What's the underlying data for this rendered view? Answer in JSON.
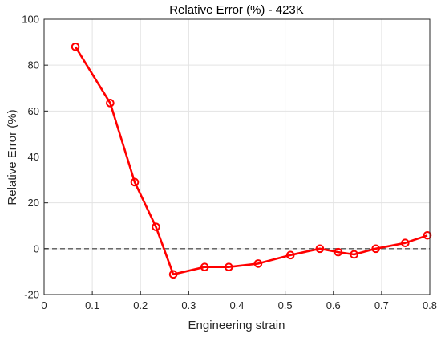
{
  "chart_data": {
    "type": "line",
    "title": "Relative Error (%) - 423K",
    "xlabel": "Engineering strain",
    "ylabel": "Relative Error (%)",
    "xlim": [
      0,
      0.8
    ],
    "ylim": [
      -20,
      100
    ],
    "xticks": [
      0,
      0.1,
      0.2,
      0.3,
      0.4,
      0.5,
      0.6,
      0.7,
      0.8
    ],
    "xtick_labels": [
      "0",
      "0.1",
      "0.2",
      "0.3",
      "0.4",
      "0.5",
      "0.6",
      "0.7",
      "0.8"
    ],
    "yticks": [
      -20,
      0,
      20,
      40,
      60,
      80,
      100
    ],
    "ytick_labels": [
      "-20",
      "0",
      "20",
      "40",
      "60",
      "80",
      "100"
    ],
    "grid": true,
    "reference_line": {
      "y": 0,
      "style": "dashed",
      "color": "#555555"
    },
    "series": [
      {
        "color": "#ff0000",
        "marker": "circle",
        "x": [
          0.065,
          0.137,
          0.188,
          0.232,
          0.268,
          0.333,
          0.383,
          0.444,
          0.511,
          0.572,
          0.61,
          0.643,
          0.688,
          0.749,
          0.795
        ],
        "y": [
          88.0,
          63.5,
          29.0,
          9.5,
          -11.2,
          -8.0,
          -8.0,
          -6.5,
          -2.8,
          0.0,
          -1.5,
          -2.5,
          0.0,
          2.5,
          5.8
        ]
      }
    ]
  }
}
